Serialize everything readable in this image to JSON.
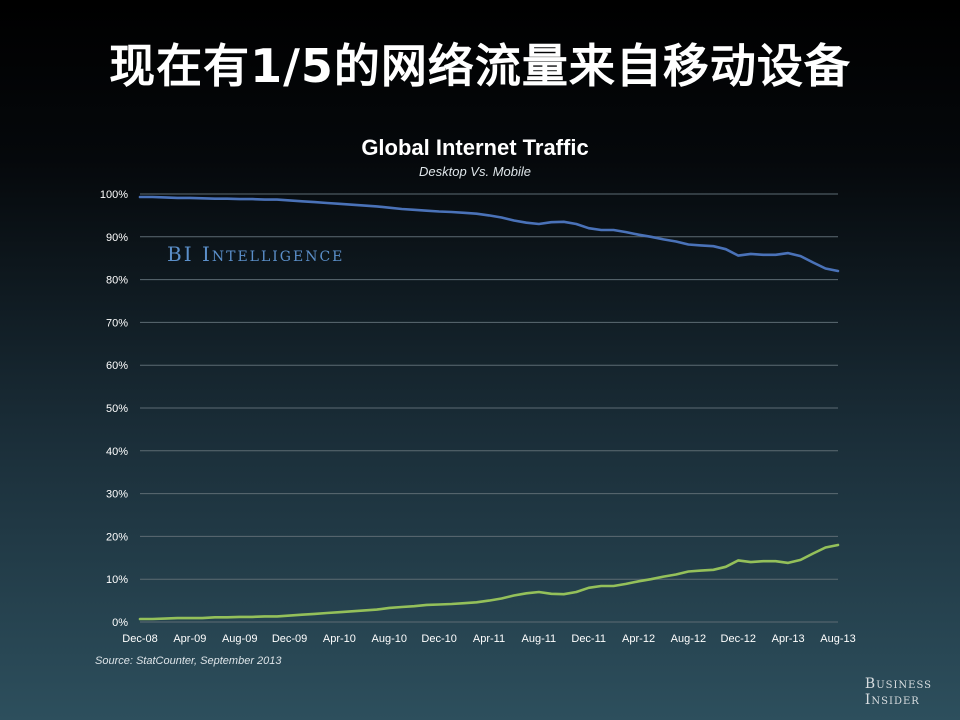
{
  "page": {
    "title": "现在有1/5的网络流量来自移动设备",
    "source": "Source: StatCounter, September 2013",
    "brand_line1": "Business",
    "brand_line2": "Insider",
    "watermark": "BI Intelligence"
  },
  "colors": {
    "desktop": "#4a72b8",
    "mobile": "#94c05a",
    "grid": "#5d6b73"
  },
  "chart_data": {
    "type": "line",
    "title": "Global Internet Traffic",
    "subtitle": "Desktop Vs. Mobile",
    "xlabel": "",
    "ylabel": "",
    "ylim": [
      0,
      100
    ],
    "yticks": [
      "0%",
      "10%",
      "20%",
      "30%",
      "40%",
      "50%",
      "60%",
      "70%",
      "80%",
      "90%",
      "100%"
    ],
    "xticks": [
      "Dec-08",
      "Apr-09",
      "Aug-09",
      "Dec-09",
      "Apr-10",
      "Aug-10",
      "Dec-10",
      "Apr-11",
      "Aug-11",
      "Dec-11",
      "Apr-12",
      "Aug-12",
      "Dec-12",
      "Apr-13",
      "Aug-13"
    ],
    "grid": true,
    "legend": "none",
    "x": [
      "Dec-08",
      "Jan-09",
      "Feb-09",
      "Mar-09",
      "Apr-09",
      "May-09",
      "Jun-09",
      "Jul-09",
      "Aug-09",
      "Sep-09",
      "Oct-09",
      "Nov-09",
      "Dec-09",
      "Jan-10",
      "Feb-10",
      "Mar-10",
      "Apr-10",
      "May-10",
      "Jun-10",
      "Jul-10",
      "Aug-10",
      "Sep-10",
      "Oct-10",
      "Nov-10",
      "Dec-10",
      "Jan-11",
      "Feb-11",
      "Mar-11",
      "Apr-11",
      "May-11",
      "Jun-11",
      "Jul-11",
      "Aug-11",
      "Sep-11",
      "Oct-11",
      "Nov-11",
      "Dec-11",
      "Jan-12",
      "Feb-12",
      "Mar-12",
      "Apr-12",
      "May-12",
      "Jun-12",
      "Jul-12",
      "Aug-12",
      "Sep-12",
      "Oct-12",
      "Nov-12",
      "Dec-12",
      "Jan-13",
      "Feb-13",
      "Mar-13",
      "Apr-13",
      "May-13",
      "Jun-13",
      "Jul-13",
      "Aug-13"
    ],
    "series": [
      {
        "key": "desktop",
        "values": [
          99.3,
          99.3,
          99.2,
          99.1,
          99.1,
          99.0,
          98.9,
          98.9,
          98.8,
          98.8,
          98.7,
          98.7,
          98.5,
          98.3,
          98.1,
          97.9,
          97.7,
          97.5,
          97.3,
          97.1,
          96.8,
          96.5,
          96.3,
          96.1,
          95.9,
          95.8,
          95.6,
          95.4,
          95.0,
          94.5,
          93.8,
          93.3,
          93.0,
          93.4,
          93.5,
          93.0,
          92.0,
          91.6,
          91.6,
          91.1,
          90.5,
          90.0,
          89.4,
          88.9,
          88.2,
          88.0,
          87.8,
          87.1,
          85.6,
          86.0,
          85.8,
          85.8,
          86.2,
          85.5,
          84.0,
          82.6,
          82.0
        ]
      },
      {
        "key": "mobile",
        "values": [
          0.7,
          0.7,
          0.8,
          0.9,
          0.9,
          0.9,
          1.1,
          1.1,
          1.2,
          1.2,
          1.3,
          1.3,
          1.5,
          1.7,
          1.9,
          2.1,
          2.3,
          2.5,
          2.7,
          2.9,
          3.3,
          3.5,
          3.7,
          4.0,
          4.1,
          4.2,
          4.4,
          4.6,
          5.0,
          5.5,
          6.2,
          6.7,
          7.0,
          6.6,
          6.5,
          7.0,
          8.0,
          8.4,
          8.4,
          8.9,
          9.5,
          10.0,
          10.6,
          11.1,
          11.8,
          12.0,
          12.2,
          12.9,
          14.4,
          14.0,
          14.2,
          14.2,
          13.8,
          14.5,
          16.0,
          17.4,
          18.0
        ]
      }
    ]
  }
}
